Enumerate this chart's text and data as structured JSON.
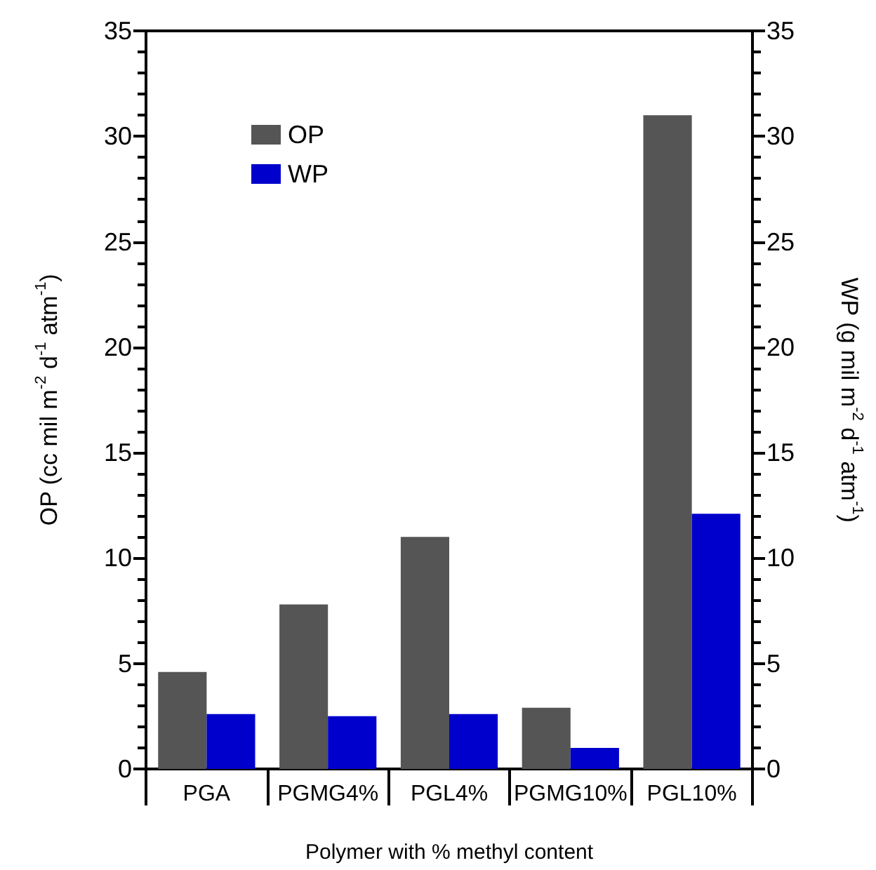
{
  "chart_data": {
    "type": "bar",
    "categories": [
      "PGA",
      "PGMG4%",
      "PGL4%",
      "PGMG10%",
      "PGL10%"
    ],
    "series": [
      {
        "name": "OP",
        "color": "#555555",
        "values": [
          4.6,
          7.8,
          11,
          2.9,
          31
        ]
      },
      {
        "name": "WP",
        "color": "#0000cc",
        "values": [
          2.6,
          2.5,
          2.6,
          1.0,
          12.1
        ]
      }
    ],
    "xlabel": "Polymer with % methyl content",
    "ylabel": "OP (cc mil m$^{-2}$ d$^{-1}$ atm$^{-1}$)",
    "y2label": "WP (g mil m$^{-2}$ d$^{-1}$ atm$^{-1}$)",
    "ylim": [
      0,
      35
    ],
    "yticks": [
      0,
      5,
      10,
      15,
      20,
      25,
      30,
      35
    ],
    "y2lim": [
      0,
      35
    ],
    "y2ticks": [
      0,
      5,
      10,
      15,
      20,
      25,
      30,
      35
    ],
    "grid": false,
    "legend": "top left"
  }
}
